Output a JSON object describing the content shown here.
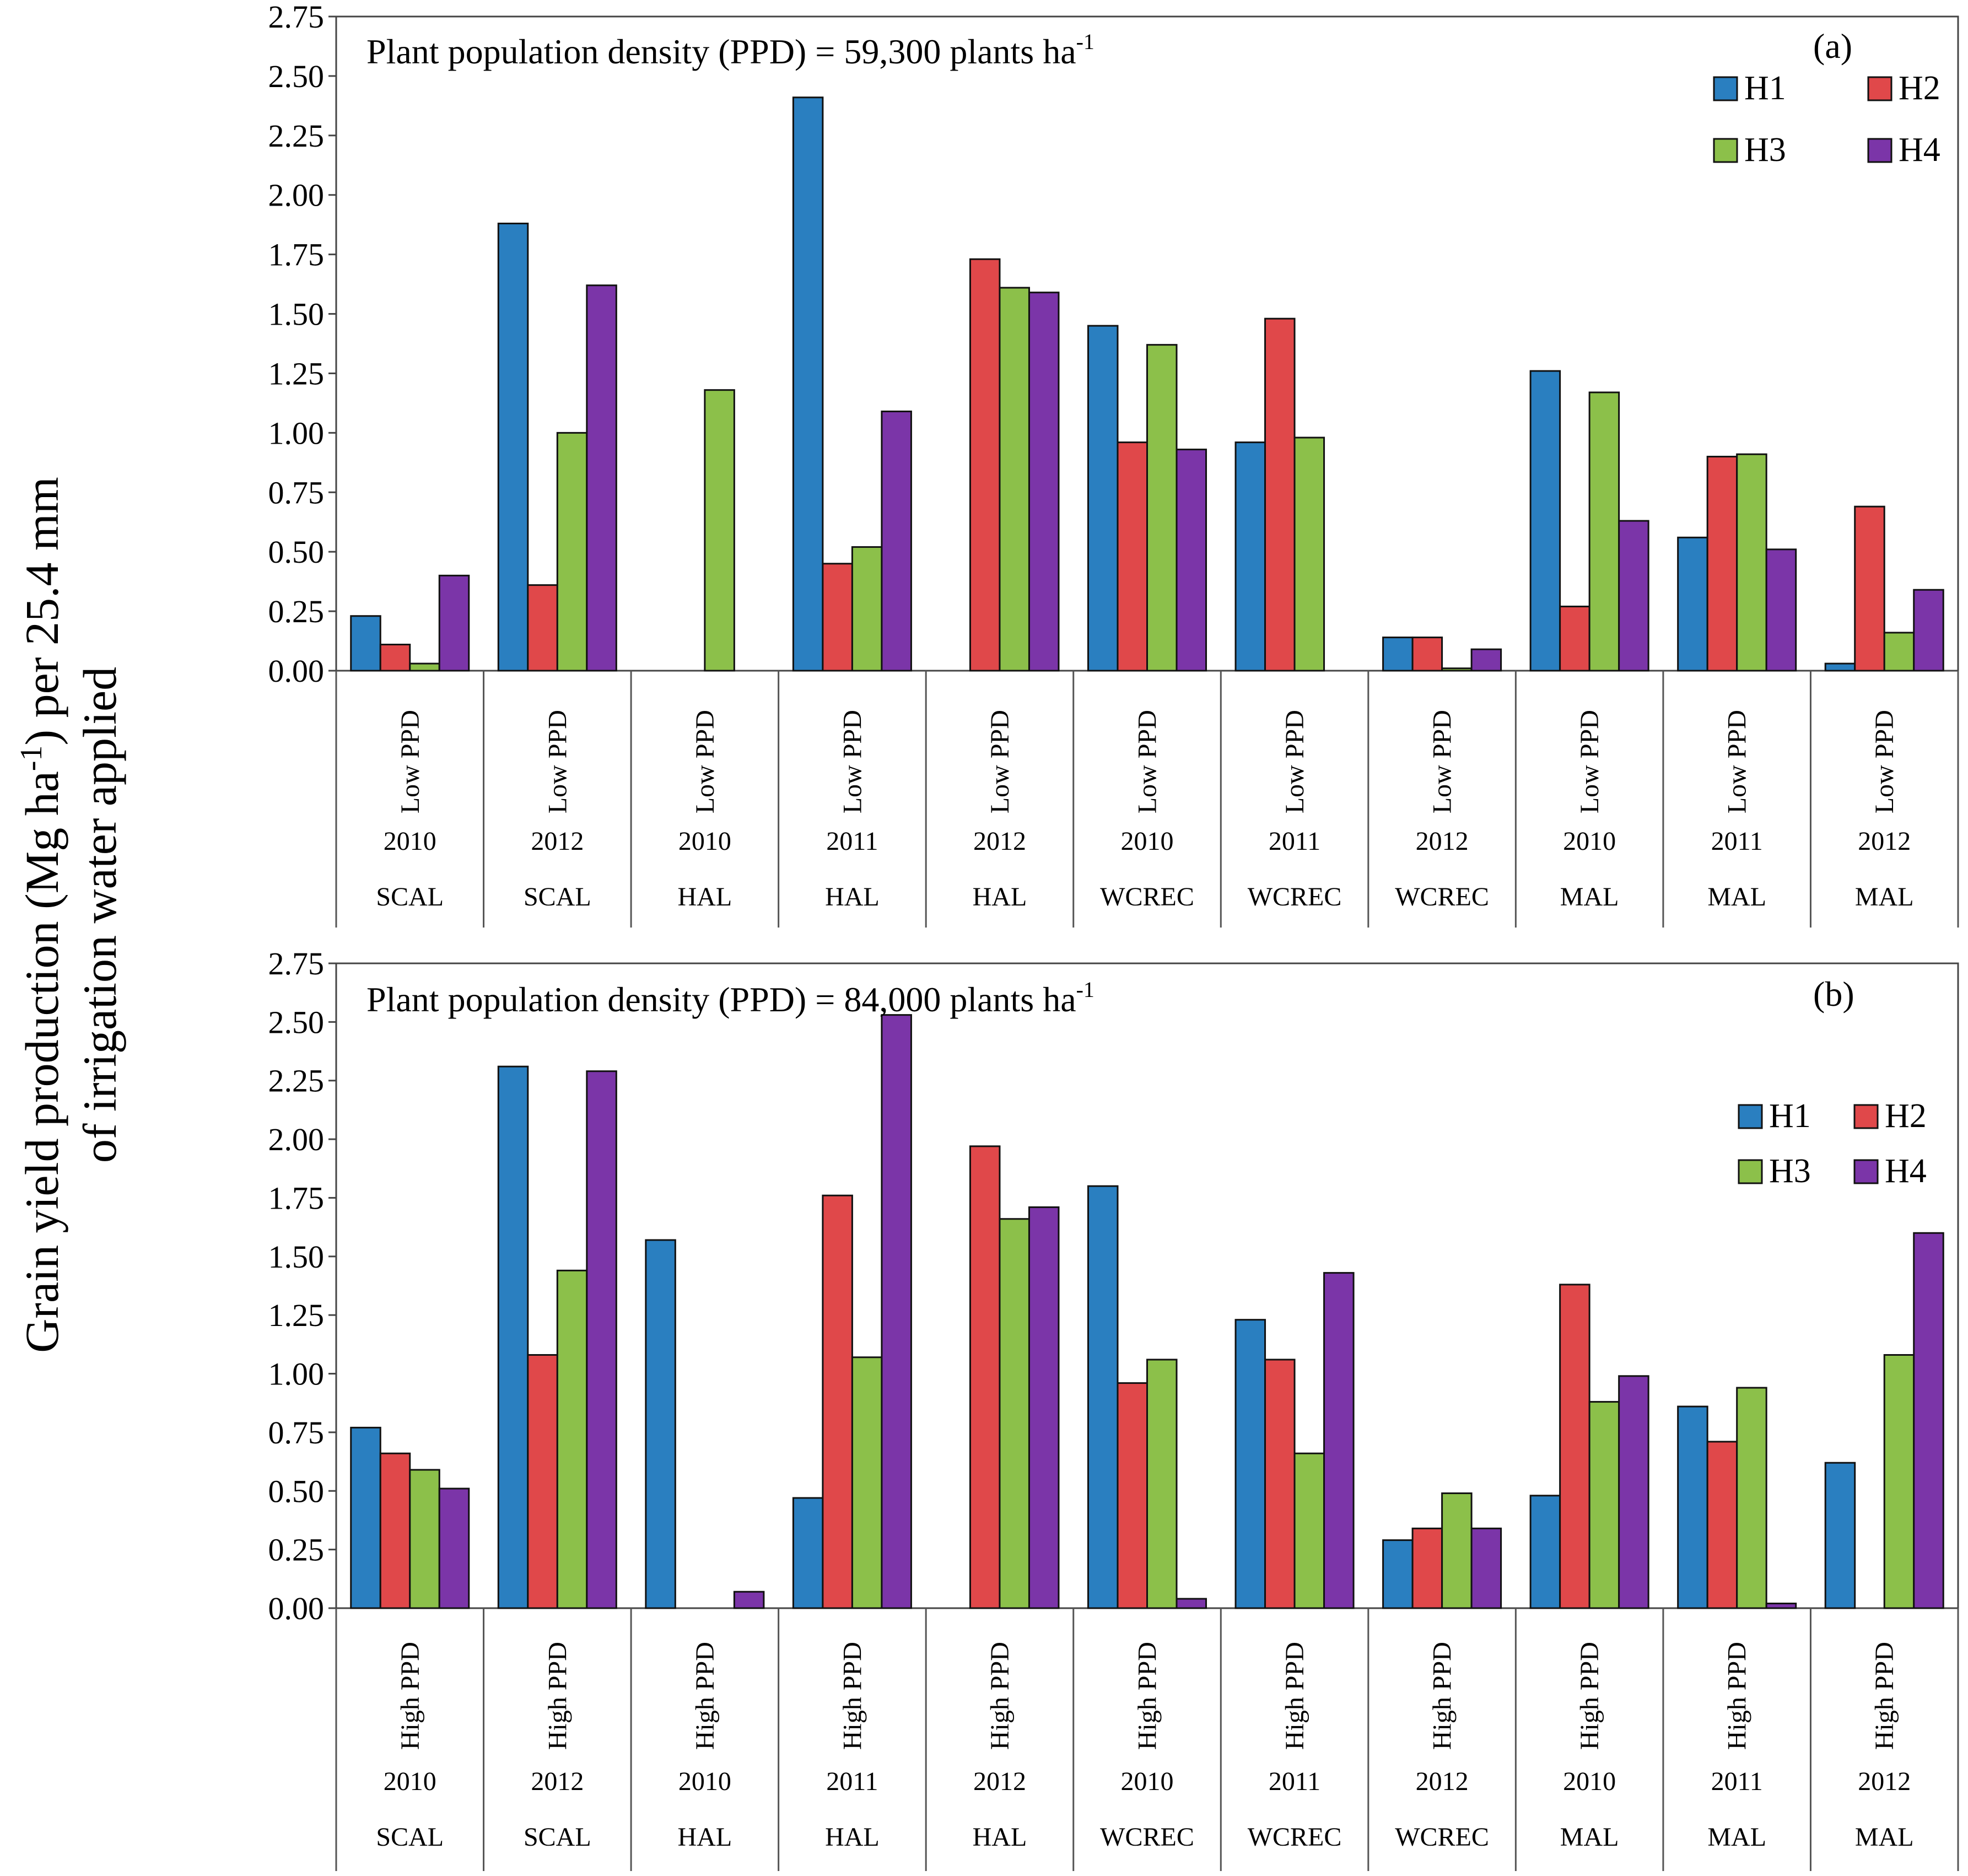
{
  "y_axis_label": {
    "line1_pre": "Grain yield production (Mg ha",
    "line1_sup": "-1",
    "line1_post": ") per 25.4 mm",
    "line2": "of irrigation water applied"
  },
  "chart_data": [
    {
      "type": "bar",
      "panel_tag": "(a)",
      "title_main": "Plant population density (PPD) = 59,300 plants ha",
      "title_sup": "-1",
      "legend_position": "top-right",
      "ylim": [
        0,
        2.75
      ],
      "yticks": [
        "0.00",
        "0.25",
        "0.50",
        "0.75",
        "1.00",
        "1.25",
        "1.50",
        "1.75",
        "2.00",
        "2.25",
        "2.50",
        "2.75"
      ],
      "grid": false,
      "category_rows": [
        [
          "Low PPD",
          "Low PPD",
          "Low PPD",
          "Low PPD",
          "Low PPD",
          "Low PPD",
          "Low PPD",
          "Low PPD",
          "Low PPD",
          "Low PPD",
          "Low PPD"
        ],
        [
          "2010",
          "2012",
          "2010",
          "2011",
          "2012",
          "2010",
          "2011",
          "2012",
          "2010",
          "2011",
          "2012"
        ],
        [
          "SCAL",
          "SCAL",
          "HAL",
          "HAL",
          "HAL",
          "WCREC",
          "WCREC",
          "WCREC",
          "MAL",
          "MAL",
          "MAL"
        ]
      ],
      "series": [
        {
          "name": "H1",
          "color": "#2a7fc0",
          "values": [
            0.23,
            1.88,
            0,
            2.41,
            0,
            1.45,
            0.96,
            0.14,
            1.26,
            0.56,
            0.03
          ]
        },
        {
          "name": "H2",
          "color": "#e0484a",
          "values": [
            0.11,
            0.36,
            0,
            0.45,
            1.73,
            0.96,
            1.48,
            0.14,
            0.27,
            0.9,
            0.69
          ]
        },
        {
          "name": "H3",
          "color": "#8cc04a",
          "values": [
            0.03,
            1.0,
            1.18,
            0.52,
            1.61,
            1.37,
            0.98,
            0.01,
            1.17,
            0.91,
            0.16
          ]
        },
        {
          "name": "H4",
          "color": "#7b35a8",
          "values": [
            0.4,
            1.62,
            0,
            1.09,
            1.59,
            0.93,
            0,
            0.09,
            0.63,
            0.51,
            0.34
          ]
        }
      ]
    },
    {
      "type": "bar",
      "panel_tag": "(b)",
      "title_main": "Plant population density (PPD) = 84,000 plants ha",
      "title_sup": "-1",
      "legend_position": "upper-right",
      "ylim": [
        0,
        2.75
      ],
      "yticks": [
        "0.00",
        "0.25",
        "0.50",
        "0.75",
        "1.00",
        "1.25",
        "1.50",
        "1.75",
        "2.00",
        "2.25",
        "2.50",
        "2.75"
      ],
      "grid": false,
      "category_rows": [
        [
          "High PPD",
          "High PPD",
          "High PPD",
          "High PPD",
          "High PPD",
          "High PPD",
          "High PPD",
          "High PPD",
          "High PPD",
          "High PPD",
          "High PPD"
        ],
        [
          "2010",
          "2012",
          "2010",
          "2011",
          "2012",
          "2010",
          "2011",
          "2012",
          "2010",
          "2011",
          "2012"
        ],
        [
          "SCAL",
          "SCAL",
          "HAL",
          "HAL",
          "HAL",
          "WCREC",
          "WCREC",
          "WCREC",
          "MAL",
          "MAL",
          "MAL"
        ]
      ],
      "series": [
        {
          "name": "H1",
          "color": "#2a7fc0",
          "values": [
            0.77,
            2.31,
            1.57,
            0.47,
            0,
            1.8,
            1.23,
            0.29,
            0.48,
            0.86,
            0.62
          ]
        },
        {
          "name": "H2",
          "color": "#e0484a",
          "values": [
            0.66,
            1.08,
            0,
            1.76,
            1.97,
            0.96,
            1.06,
            0.34,
            1.38,
            0.71,
            0
          ]
        },
        {
          "name": "H3",
          "color": "#8cc04a",
          "values": [
            0.59,
            1.44,
            0,
            1.07,
            1.66,
            1.06,
            0.66,
            0.49,
            0.88,
            0.94,
            1.08
          ]
        },
        {
          "name": "H4",
          "color": "#7b35a8",
          "values": [
            0.51,
            2.29,
            0.07,
            2.53,
            1.71,
            0.04,
            1.43,
            0.34,
            0.99,
            0.02,
            1.6
          ]
        }
      ]
    }
  ]
}
